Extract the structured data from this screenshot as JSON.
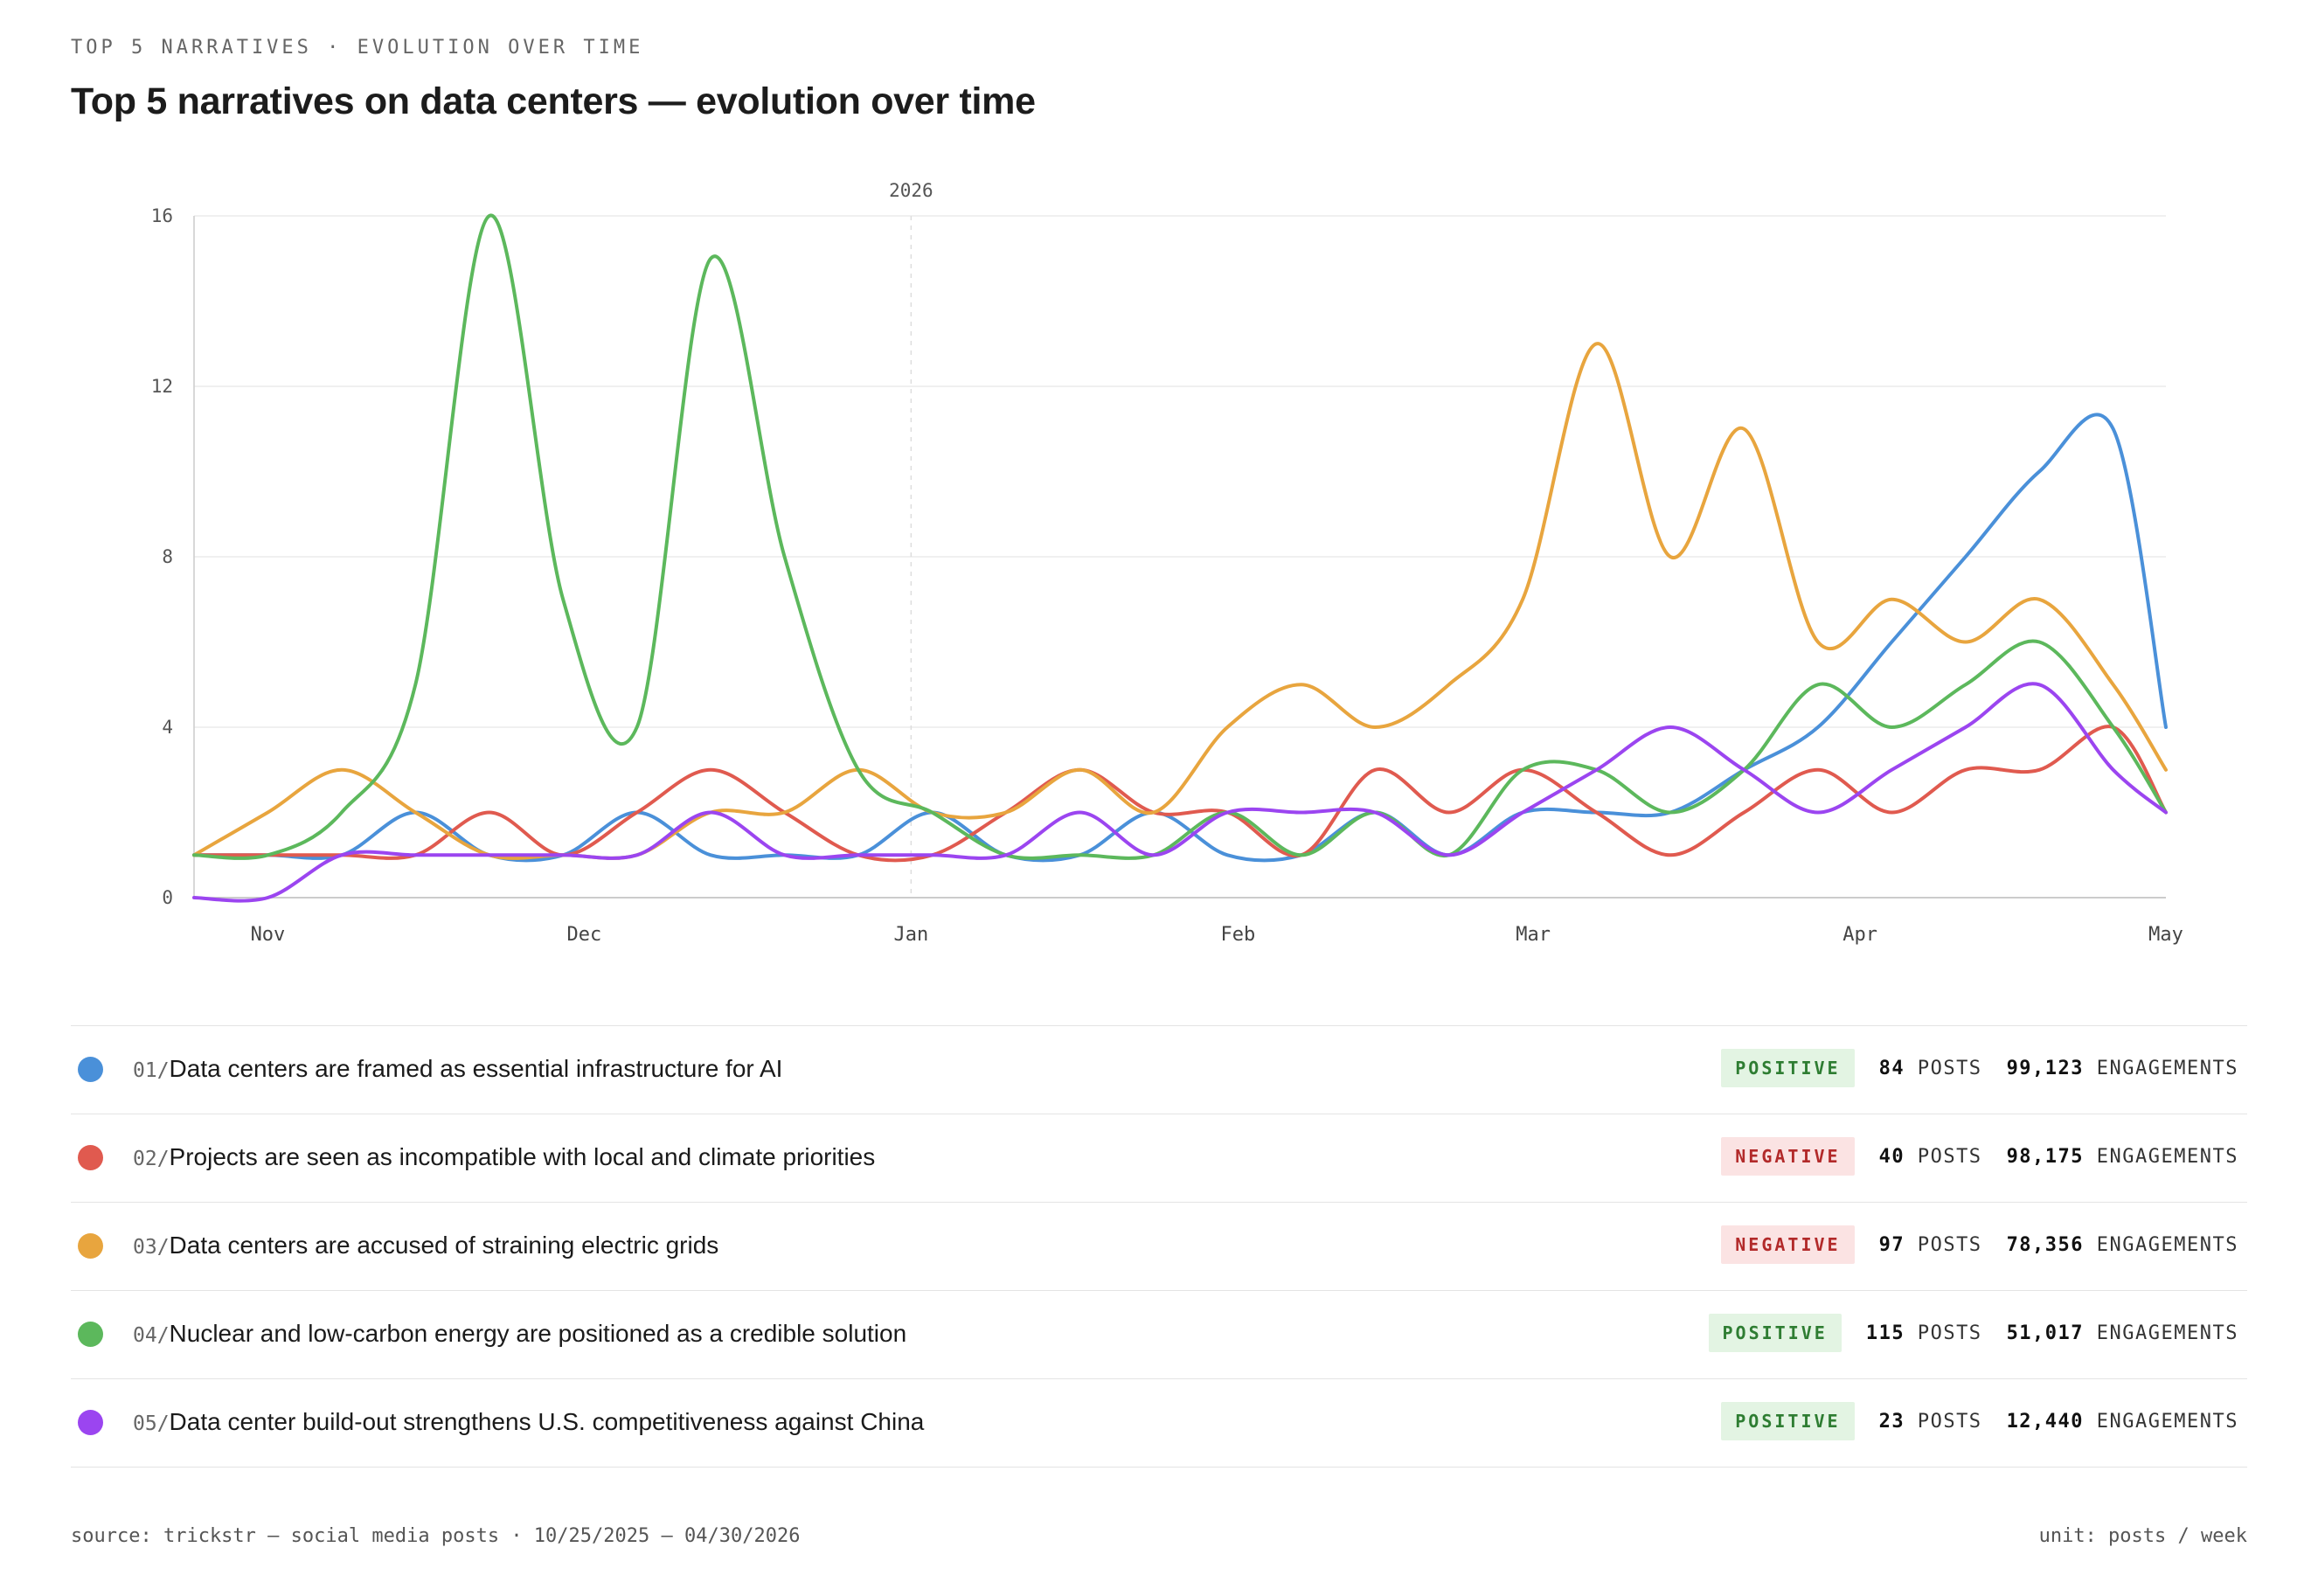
{
  "header": {
    "kicker": "TOP 5 NARRATIVES · EVOLUTION OVER TIME",
    "title": "Top 5 narratives on data centers — evolution over time"
  },
  "chart_data": {
    "type": "line",
    "x_axis": {
      "type": "date",
      "range": [
        "2025-10-25",
        "2026-04-30"
      ],
      "ticks": [
        "Nov",
        "Dec",
        "Jan",
        "Feb",
        "Mar",
        "Apr",
        "May"
      ]
    },
    "y_axis": {
      "range": [
        0,
        16
      ],
      "ticks": [
        "0",
        "4",
        "8",
        "12",
        "16"
      ]
    },
    "year_marker": {
      "label": "2026",
      "date": "2026-01-01"
    },
    "grid": true,
    "dates": [
      "2025-10-25",
      "2025-11-01",
      "2025-11-08",
      "2025-11-15",
      "2025-11-22",
      "2025-11-29",
      "2025-12-06",
      "2025-12-13",
      "2025-12-20",
      "2025-12-27",
      "2026-01-03",
      "2026-01-10",
      "2026-01-17",
      "2026-01-24",
      "2026-01-31",
      "2026-02-07",
      "2026-02-14",
      "2026-02-21",
      "2026-02-28",
      "2026-03-07",
      "2026-03-14",
      "2026-03-21",
      "2026-03-28",
      "2026-04-04",
      "2026-04-11",
      "2026-04-18",
      "2026-04-25",
      "2026-04-30"
    ],
    "series": [
      {
        "name": "Data centers are framed as essential infrastructure for AI",
        "color": "#4a90d9",
        "values": [
          1,
          1,
          1,
          2,
          1,
          1,
          2,
          1,
          1,
          1,
          2,
          1,
          1,
          2,
          1,
          1,
          2,
          1,
          2,
          2,
          2,
          3,
          4,
          6,
          8,
          10,
          11,
          4
        ]
      },
      {
        "name": "Projects are seen as incompatible with local and climate priorities",
        "color": "#e05a4f",
        "values": [
          1,
          1,
          1,
          1,
          2,
          1,
          2,
          3,
          2,
          1,
          1,
          2,
          3,
          2,
          2,
          1,
          3,
          2,
          3,
          2,
          1,
          2,
          3,
          2,
          3,
          3,
          4,
          2
        ]
      },
      {
        "name": "Data centers are accused of straining electric grids",
        "color": "#e8a53e",
        "values": [
          1,
          2,
          3,
          2,
          1,
          1,
          1,
          2,
          2,
          3,
          2,
          2,
          3,
          2,
          4,
          5,
          4,
          5,
          7,
          13,
          8,
          11,
          6,
          7,
          6,
          7,
          5,
          3
        ]
      },
      {
        "name": "Nuclear and low-carbon energy are positioned as a credible solution",
        "color": "#5cb85c",
        "values": [
          1,
          1,
          2,
          5,
          16,
          7,
          4,
          15,
          8,
          3,
          2,
          1,
          1,
          1,
          2,
          1,
          2,
          1,
          3,
          3,
          2,
          3,
          5,
          4,
          5,
          6,
          4,
          2
        ]
      },
      {
        "name": "Data center build-out strengthens U.S. competitiveness against China",
        "color": "#9b45f0",
        "values": [
          0,
          0,
          1,
          1,
          1,
          1,
          1,
          2,
          1,
          1,
          1,
          1,
          2,
          1,
          2,
          2,
          2,
          1,
          2,
          3,
          4,
          3,
          2,
          3,
          4,
          5,
          3,
          2
        ]
      }
    ]
  },
  "legend": [
    {
      "num": "01/",
      "label": "Data centers are framed as essential infrastructure for AI",
      "color": "#4a90d9",
      "sentiment": "POSITIVE",
      "posts": "84",
      "posts_unit": "POSTS",
      "engagements": "99,123",
      "eng_unit": "ENGAGEMENTS"
    },
    {
      "num": "02/",
      "label": "Projects are seen as incompatible with local and climate priorities",
      "color": "#e05a4f",
      "sentiment": "NEGATIVE",
      "posts": "40",
      "posts_unit": "POSTS",
      "engagements": "98,175",
      "eng_unit": "ENGAGEMENTS"
    },
    {
      "num": "03/",
      "label": "Data centers are accused of straining electric grids",
      "color": "#e8a53e",
      "sentiment": "NEGATIVE",
      "posts": "97",
      "posts_unit": "POSTS",
      "engagements": "78,356",
      "eng_unit": "ENGAGEMENTS"
    },
    {
      "num": "04/",
      "label": "Nuclear and low-carbon energy are positioned as a credible solution",
      "color": "#5cb85c",
      "sentiment": "POSITIVE",
      "posts": "115",
      "posts_unit": "POSTS",
      "engagements": "51,017",
      "eng_unit": "ENGAGEMENTS"
    },
    {
      "num": "05/",
      "label": "Data center build-out strengthens U.S. competitiveness against China",
      "color": "#9b45f0",
      "sentiment": "POSITIVE",
      "posts": "23",
      "posts_unit": "POSTS",
      "engagements": "12,440",
      "eng_unit": "ENGAGEMENTS"
    }
  ],
  "footer": {
    "source": "source: trickstr — social media posts · 10/25/2025 — 04/30/2026",
    "unit": "unit: posts / week"
  }
}
